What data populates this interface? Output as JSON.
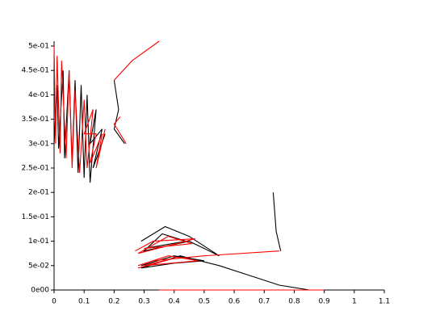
{
  "chart_data": {
    "type": "line",
    "xlim": [
      0,
      1.1
    ],
    "xticks": [
      0,
      0.1,
      0.2,
      0.3,
      0.4,
      0.5,
      0.6,
      0.7,
      0.8,
      0.9,
      1,
      1.1
    ],
    "ylim": [
      0,
      0.5
    ],
    "yticks": [
      {
        "value": 0,
        "label": "0e00"
      },
      {
        "value": 0.05,
        "label": "5e-02"
      },
      {
        "value": 0.1,
        "label": "1e-01"
      },
      {
        "value": 0.15,
        "label": "1.5e-01"
      },
      {
        "value": 0.2,
        "label": "2e-01"
      },
      {
        "value": 0.25,
        "label": "2.5e-01"
      },
      {
        "value": 0.3,
        "label": "3e-01"
      },
      {
        "value": 0.35,
        "label": "3.5e-01"
      },
      {
        "value": 0.4,
        "label": "4e-01"
      },
      {
        "value": 0.45,
        "label": "4.5e-01"
      },
      {
        "value": 0.5,
        "label": "5e-01"
      }
    ],
    "series": [
      {
        "color": "#000000",
        "x": [
          0.0,
          0.01,
          0.015,
          0.03,
          0.035,
          0.05,
          0.06,
          0.07,
          0.08,
          0.09,
          0.1,
          0.11,
          0.12,
          0.14,
          0.12,
          0.16,
          0.13,
          0.17,
          null,
          0.2,
          0.215,
          0.2,
          0.235,
          null,
          0.29,
          0.37,
          0.45,
          0.55,
          0.45,
          0.3,
          0.36,
          0.44,
          0.3,
          null,
          0.29,
          0.4,
          0.5,
          0.4,
          0.29,
          0.42,
          0.55,
          0.65,
          0.75,
          0.85,
          null,
          0.73,
          0.74,
          0.755
        ],
        "values": [
          0.3,
          0.42,
          0.29,
          0.45,
          0.27,
          0.45,
          0.26,
          0.43,
          0.24,
          0.42,
          0.23,
          0.4,
          0.22,
          0.37,
          0.3,
          0.33,
          0.25,
          0.32,
          null,
          0.43,
          0.37,
          0.33,
          0.3,
          null,
          0.1,
          0.13,
          0.11,
          0.07,
          0.1,
          0.08,
          0.115,
          0.1,
          0.085,
          null,
          0.05,
          0.07,
          0.06,
          0.055,
          0.045,
          0.07,
          0.05,
          0.03,
          0.01,
          0.0,
          null,
          0.2,
          0.12,
          0.08
        ]
      },
      {
        "color": "#ff0000",
        "x": [
          0.0,
          0.005,
          0.01,
          0.02,
          0.025,
          0.04,
          0.05,
          0.06,
          0.07,
          0.085,
          0.1,
          0.11,
          0.13,
          0.1,
          0.14,
          0.12,
          0.16,
          0.14,
          0.17,
          null,
          0.2,
          0.26,
          0.35,
          null,
          0.24,
          0.2,
          0.22,
          null,
          0.75,
          0.5,
          0.33,
          0.28,
          0.38,
          0.48,
          0.3,
          0.4,
          0.28,
          null,
          0.27,
          0.33,
          0.47,
          0.28,
          0.38,
          0.46,
          0.3,
          null,
          0.35,
          0.9
        ],
        "values": [
          0.5,
          0.3,
          0.48,
          0.28,
          0.47,
          0.27,
          0.45,
          0.25,
          0.41,
          0.24,
          0.39,
          0.25,
          0.37,
          0.32,
          0.32,
          0.26,
          0.32,
          0.25,
          0.33,
          null,
          0.43,
          0.47,
          0.51,
          null,
          0.3,
          0.34,
          0.355,
          null,
          0.08,
          0.07,
          0.06,
          0.05,
          0.07,
          0.06,
          0.05,
          0.065,
          0.045,
          null,
          0.08,
          0.1,
          0.105,
          0.075,
          0.11,
          0.095,
          0.085,
          null,
          0.0,
          0.0
        ]
      }
    ]
  }
}
